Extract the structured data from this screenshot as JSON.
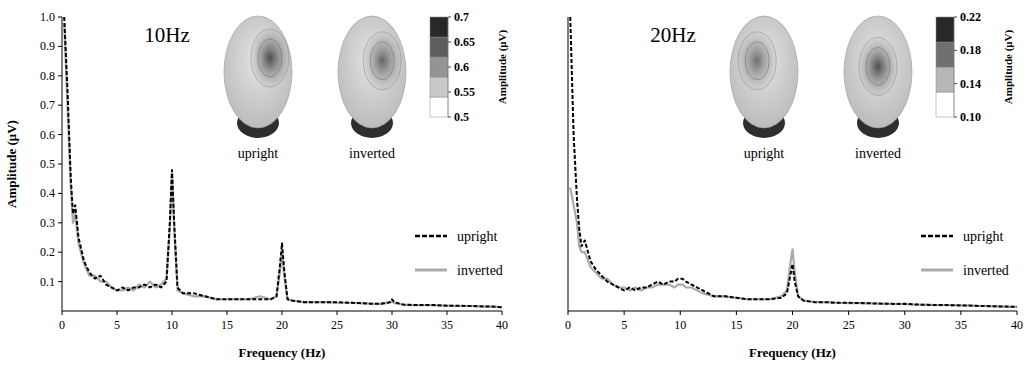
{
  "chart_data": [
    {
      "type": "line",
      "title": "10Hz",
      "x_label": "Frequency (Hz)",
      "y_label": "Amplitude (μV)",
      "x": [
        0.2,
        0.5,
        0.8,
        1,
        1.2,
        1.5,
        2,
        2.5,
        3,
        3.5,
        4,
        4.5,
        5,
        5.5,
        6,
        6.5,
        7,
        7.5,
        8,
        8.5,
        9,
        9.5,
        9.8,
        10,
        10.2,
        10.5,
        11,
        12,
        13,
        14,
        15,
        16,
        17,
        18,
        19,
        19.5,
        19.8,
        20,
        20.2,
        20.5,
        21,
        22,
        23,
        24,
        25,
        26,
        27,
        28,
        29,
        29.8,
        30,
        30.2,
        31,
        32,
        33,
        34,
        35,
        36,
        37,
        38,
        39,
        40
      ],
      "series": [
        {
          "name": "upright",
          "color": "#000000",
          "line_style": "dashed",
          "values": [
            1.0,
            0.75,
            0.45,
            0.33,
            0.36,
            0.25,
            0.17,
            0.13,
            0.11,
            0.12,
            0.09,
            0.08,
            0.07,
            0.08,
            0.07,
            0.08,
            0.08,
            0.09,
            0.08,
            0.09,
            0.08,
            0.1,
            0.3,
            0.48,
            0.3,
            0.08,
            0.06,
            0.06,
            0.05,
            0.04,
            0.04,
            0.04,
            0.04,
            0.04,
            0.04,
            0.05,
            0.15,
            0.23,
            0.14,
            0.04,
            0.035,
            0.03,
            0.03,
            0.03,
            0.03,
            0.028,
            0.027,
            0.025,
            0.025,
            0.03,
            0.04,
            0.03,
            0.022,
            0.02,
            0.02,
            0.02,
            0.018,
            0.018,
            0.017,
            0.016,
            0.015,
            0.013
          ]
        },
        {
          "name": "inverted",
          "color": "#aaaaaa",
          "line_style": "solid",
          "values": [
            0.98,
            0.7,
            0.42,
            0.3,
            0.33,
            0.23,
            0.16,
            0.12,
            0.12,
            0.1,
            0.1,
            0.08,
            0.07,
            0.07,
            0.08,
            0.07,
            0.09,
            0.08,
            0.1,
            0.08,
            0.09,
            0.11,
            0.28,
            0.47,
            0.28,
            0.07,
            0.06,
            0.05,
            0.05,
            0.04,
            0.04,
            0.04,
            0.04,
            0.05,
            0.04,
            0.05,
            0.13,
            0.2,
            0.12,
            0.04,
            0.035,
            0.03,
            0.03,
            0.03,
            0.028,
            0.028,
            0.027,
            0.025,
            0.024,
            0.028,
            0.032,
            0.027,
            0.022,
            0.02,
            0.02,
            0.019,
            0.018,
            0.017,
            0.017,
            0.016,
            0.015,
            0.013
          ]
        }
      ],
      "xlim": [
        0,
        40
      ],
      "ylim": [
        0,
        1.0
      ],
      "xticks": [
        0,
        5,
        10,
        15,
        20,
        25,
        30,
        35,
        40
      ],
      "yticks": [
        0.1,
        0.2,
        0.3,
        0.4,
        0.5,
        0.6,
        0.7,
        0.8,
        0.9,
        {
          "value": 1.0,
          "label": "1.0"
        }
      ],
      "legend": "right",
      "topography": {
        "labels": [
          "upright",
          "inverted"
        ],
        "colorbar": {
          "label": "Amplitude (μV)",
          "range": [
            0.5,
            0.7
          ],
          "ticks": [
            0.7,
            0.65,
            0.6,
            0.55,
            0.5
          ]
        }
      }
    },
    {
      "type": "line",
      "title": "20Hz",
      "x_label": "Frequency (Hz)",
      "x": [
        0.2,
        0.5,
        0.8,
        1,
        1.2,
        1.5,
        2,
        2.5,
        3,
        3.5,
        4,
        4.5,
        5,
        5.5,
        6,
        6.5,
        7,
        7.5,
        8,
        8.5,
        9,
        9.5,
        9.8,
        10,
        10.2,
        10.5,
        11,
        12,
        13,
        14,
        15,
        16,
        17,
        18,
        19,
        19.5,
        19.8,
        20,
        20.2,
        20.5,
        21,
        22,
        23,
        24,
        25,
        26,
        27,
        28,
        29,
        29.8,
        30,
        30.2,
        31,
        32,
        33,
        34,
        35,
        36,
        37,
        38,
        39,
        40
      ],
      "series": [
        {
          "name": "upright",
          "color": "#000000",
          "line_style": "dashed",
          "values": [
            1.0,
            0.6,
            0.38,
            0.28,
            0.22,
            0.24,
            0.17,
            0.14,
            0.12,
            0.1,
            0.09,
            0.08,
            0.07,
            0.08,
            0.07,
            0.08,
            0.08,
            0.09,
            0.1,
            0.09,
            0.1,
            0.1,
            0.11,
            0.11,
            0.11,
            0.1,
            0.09,
            0.07,
            0.05,
            0.05,
            0.045,
            0.04,
            0.04,
            0.04,
            0.045,
            0.06,
            0.12,
            0.16,
            0.1,
            0.05,
            0.035,
            0.03,
            0.03,
            0.028,
            0.028,
            0.027,
            0.026,
            0.025,
            0.024,
            0.024,
            0.025,
            0.024,
            0.022,
            0.021,
            0.02,
            0.02,
            0.019,
            0.018,
            0.017,
            0.016,
            0.015,
            0.014
          ]
        },
        {
          "name": "inverted",
          "color": "#aaaaaa",
          "line_style": "solid",
          "values": [
            0.42,
            0.36,
            0.3,
            0.22,
            0.2,
            0.2,
            0.15,
            0.13,
            0.11,
            0.11,
            0.09,
            0.08,
            0.08,
            0.07,
            0.08,
            0.07,
            0.08,
            0.08,
            0.09,
            0.09,
            0.09,
            0.08,
            0.09,
            0.09,
            0.09,
            0.08,
            0.08,
            0.06,
            0.05,
            0.05,
            0.045,
            0.04,
            0.04,
            0.04,
            0.05,
            0.07,
            0.16,
            0.21,
            0.13,
            0.05,
            0.035,
            0.03,
            0.03,
            0.028,
            0.027,
            0.027,
            0.026,
            0.025,
            0.024,
            0.024,
            0.024,
            0.023,
            0.022,
            0.021,
            0.02,
            0.02,
            0.019,
            0.018,
            0.017,
            0.016,
            0.015,
            0.014
          ]
        }
      ],
      "xlim": [
        0,
        40
      ],
      "ylim": [
        0,
        1.0
      ],
      "xticks": [
        0,
        5,
        10,
        15,
        20,
        25,
        30,
        35,
        40
      ],
      "tick_labels": "x",
      "legend": "right",
      "topography": {
        "labels": [
          "upright",
          "inverted"
        ],
        "colorbar": {
          "label": "Amplitude (μV)",
          "range": [
            0.1,
            0.22
          ],
          "ticks": [
            0.22,
            0.18,
            0.14,
            {
              "value": 0.1,
              "label": "0.10"
            }
          ]
        }
      }
    }
  ]
}
